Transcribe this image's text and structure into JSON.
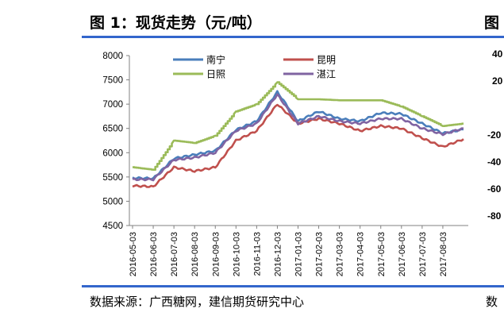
{
  "header": {
    "title": "图 1：现货走势（元/吨）",
    "title_right_fragment": "图"
  },
  "footer": {
    "source": "数据来源：广西糖网，建信期货研究中心",
    "source_right_fragment": "数"
  },
  "right_panel": {
    "ticks": [
      "40",
      "20",
      "-20",
      "-40",
      "-60",
      "-80"
    ]
  },
  "colors": {
    "rule": "#3366cc",
    "nanning": "#4a7ebb",
    "kunming": "#c0504d",
    "rizhao": "#9bbb59",
    "zhanjiang": "#8064a2"
  },
  "chart_data": {
    "type": "line",
    "title": "",
    "ylim": [
      4500,
      8000
    ],
    "yticks": [
      "8000",
      "7500",
      "7000",
      "6500",
      "6000",
      "5500",
      "5000",
      "4500"
    ],
    "x": [
      "2016-05-03",
      "2016-06-03",
      "2016-07-03",
      "2016-08-03",
      "2016-09-03",
      "2016-10-03",
      "2016-11-03",
      "2016-12-03",
      "2017-01-03",
      "2017-02-03",
      "2017-03-03",
      "2017-04-03",
      "2017-05-03",
      "2017-06-03",
      "2017-07-03",
      "2017-08-03",
      "2017-08-20"
    ],
    "xticks": [
      "2016-05-03",
      "2016-06-03",
      "2016-07-03",
      "2016-08-03",
      "2016-09-03",
      "2016-10-03",
      "2016-11-03",
      "2016-12-03",
      "2017-01-03",
      "2017-02-03",
      "2017-03-03",
      "2017-04-03",
      "2017-05-03",
      "2017-06-03",
      "2017-07-03",
      "2017-08-03"
    ],
    "legend": {
      "placement": "top",
      "order": [
        "南宁",
        "昆明",
        "日照",
        "湛江"
      ]
    },
    "series": [
      {
        "name": "南宁",
        "color": "#4a7ebb",
        "values": [
          5480,
          5470,
          5880,
          5960,
          6040,
          6470,
          6650,
          7250,
          6650,
          6850,
          6700,
          6650,
          6820,
          6800,
          6600,
          6400,
          6480
        ]
      },
      {
        "name": "昆明",
        "color": "#c0504d",
        "values": [
          5320,
          5300,
          5700,
          5620,
          5700,
          6250,
          6450,
          7000,
          6600,
          6700,
          6600,
          6450,
          6550,
          6500,
          6300,
          6120,
          6280
        ]
      },
      {
        "name": "日照",
        "color": "#9bbb59",
        "values": [
          5700,
          5650,
          6250,
          6200,
          6350,
          6850,
          7000,
          7450,
          7100,
          7100,
          7080,
          7080,
          7080,
          6950,
          6750,
          6550,
          6600
        ]
      },
      {
        "name": "湛江",
        "color": "#8064a2",
        "values": [
          5450,
          5450,
          5850,
          5900,
          6000,
          6450,
          6600,
          7200,
          6600,
          6750,
          6650,
          6600,
          6700,
          6700,
          6500,
          6380,
          6500
        ]
      }
    ]
  }
}
